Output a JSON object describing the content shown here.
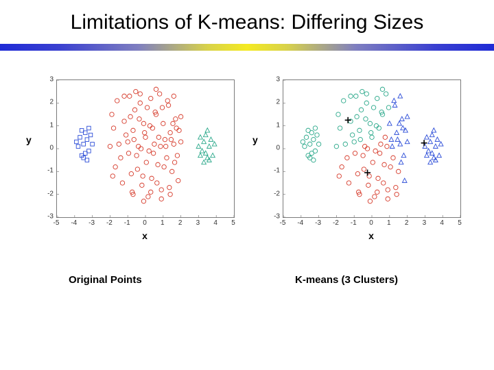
{
  "title": "Limitations of K-means: Differing Sizes",
  "title_fontsize": 30,
  "background_color": "#ffffff",
  "stripe": {
    "height": 10,
    "colors": [
      "#1f2bd6",
      "#3a40d0",
      "#7f7fc0",
      "#d8d24a",
      "#f4ea22",
      "#d8d24a",
      "#7f7fc0",
      "#3a40d0",
      "#1f2bd6"
    ],
    "stops": [
      0,
      0.12,
      0.28,
      0.42,
      0.5,
      0.58,
      0.72,
      0.88,
      1.0
    ]
  },
  "axes": {
    "xlim": [
      -5,
      5
    ],
    "ylim": [
      -3,
      3
    ],
    "xticks": [
      -5,
      -4,
      -3,
      -2,
      -1,
      0,
      1,
      2,
      3,
      4,
      5
    ],
    "yticks": [
      -3,
      -2,
      -1,
      0,
      1,
      2,
      3
    ],
    "xlabel": "x",
    "ylabel": "y",
    "tick_fontsize": 10,
    "label_fontsize": 14,
    "border_color": "#7a7a7a"
  },
  "marker": {
    "radius": 3.2,
    "stroke_width": 0.9,
    "fill": "none",
    "square_size": 5.5,
    "triangle_size": 6
  },
  "centroid": {
    "size": 9,
    "stroke_width": 1.6,
    "color": "#000000"
  },
  "clusters_common": {
    "small_left": {
      "color_truth": "#2a4bd7",
      "shape": "square",
      "points": [
        [
          -3.5,
          0.2
        ],
        [
          -3.4,
          0.7
        ],
        [
          -3.7,
          0.5
        ],
        [
          -3.2,
          -0.1
        ],
        [
          -3.6,
          -0.3
        ],
        [
          -3.3,
          0.4
        ],
        [
          -3.8,
          0.1
        ],
        [
          -3.1,
          0.6
        ],
        [
          -3.5,
          -0.4
        ],
        [
          -3.2,
          0.9
        ],
        [
          -3.9,
          0.3
        ],
        [
          -3.4,
          -0.2
        ],
        [
          -3.0,
          0.2
        ],
        [
          -3.6,
          0.8
        ],
        [
          -3.3,
          -0.5
        ]
      ]
    },
    "big_mid": {
      "color_truth": "#d63a2a",
      "shape": "circle",
      "points": [
        [
          -1.8,
          0.9
        ],
        [
          -1.6,
          2.1
        ],
        [
          -1.4,
          -0.4
        ],
        [
          -1.2,
          1.2
        ],
        [
          -1.0,
          0.3
        ],
        [
          -0.9,
          2.3
        ],
        [
          -0.8,
          -1.1
        ],
        [
          -0.7,
          0.8
        ],
        [
          -0.6,
          1.7
        ],
        [
          -0.5,
          -0.3
        ],
        [
          -0.4,
          0.1
        ],
        [
          -0.3,
          2.0
        ],
        [
          -0.2,
          -1.6
        ],
        [
          -0.1,
          1.1
        ],
        [
          0.0,
          0.5
        ],
        [
          0.05,
          -0.6
        ],
        [
          0.1,
          1.8
        ],
        [
          0.2,
          -0.1
        ],
        [
          0.3,
          2.2
        ],
        [
          0.35,
          -1.3
        ],
        [
          0.4,
          0.9
        ],
        [
          0.5,
          0.2
        ],
        [
          0.6,
          1.5
        ],
        [
          0.7,
          -0.7
        ],
        [
          0.8,
          2.4
        ],
        [
          0.85,
          0.1
        ],
        [
          0.9,
          -1.8
        ],
        [
          1.0,
          1.1
        ],
        [
          1.1,
          0.4
        ],
        [
          1.2,
          -0.4
        ],
        [
          1.3,
          1.9
        ],
        [
          1.4,
          0.7
        ],
        [
          1.5,
          -1.0
        ],
        [
          1.6,
          0.2
        ],
        [
          1.7,
          1.3
        ],
        [
          1.8,
          -0.3
        ],
        [
          1.9,
          0.8
        ],
        [
          -1.7,
          -0.8
        ],
        [
          -1.5,
          0.2
        ],
        [
          -1.3,
          -1.5
        ],
        [
          -1.1,
          0.6
        ],
        [
          -0.95,
          -0.2
        ],
        [
          -0.85,
          1.4
        ],
        [
          -0.75,
          -1.9
        ],
        [
          -0.65,
          0.4
        ],
        [
          -0.55,
          2.5
        ],
        [
          -0.45,
          -0.9
        ],
        [
          -0.35,
          1.3
        ],
        [
          -0.25,
          0.0
        ],
        [
          -0.15,
          -1.2
        ],
        [
          -0.05,
          0.7
        ],
        [
          0.15,
          -2.1
        ],
        [
          0.25,
          1.0
        ],
        [
          0.45,
          -0.2
        ],
        [
          0.55,
          1.6
        ],
        [
          0.65,
          -1.5
        ],
        [
          0.75,
          0.5
        ],
        [
          0.95,
          1.8
        ],
        [
          1.05,
          -0.8
        ],
        [
          1.15,
          0.1
        ],
        [
          1.25,
          2.1
        ],
        [
          1.35,
          -1.7
        ],
        [
          1.45,
          0.4
        ],
        [
          1.55,
          1.1
        ],
        [
          1.65,
          -0.6
        ],
        [
          1.75,
          0.9
        ],
        [
          1.85,
          -1.4
        ],
        [
          -1.9,
          1.5
        ],
        [
          -2.0,
          0.1
        ],
        [
          -1.85,
          -1.2
        ],
        [
          2.0,
          0.3
        ],
        [
          2.0,
          1.4
        ],
        [
          -0.1,
          -2.3
        ],
        [
          0.3,
          -1.9
        ],
        [
          0.9,
          -2.2
        ],
        [
          -0.7,
          -2.0
        ],
        [
          1.4,
          -2.0
        ],
        [
          -1.2,
          2.3
        ],
        [
          0.6,
          2.6
        ],
        [
          -0.3,
          2.4
        ],
        [
          1.6,
          2.3
        ]
      ]
    },
    "small_right": {
      "color_truth": "#2aa88a",
      "shape": "triangle",
      "points": [
        [
          3.3,
          0.3
        ],
        [
          3.4,
          -0.2
        ],
        [
          3.6,
          0.1
        ],
        [
          3.1,
          0.5
        ],
        [
          3.5,
          -0.4
        ],
        [
          3.7,
          0.4
        ],
        [
          3.2,
          -0.1
        ],
        [
          3.8,
          -0.3
        ],
        [
          3.0,
          0.1
        ],
        [
          3.4,
          0.6
        ],
        [
          3.6,
          -0.5
        ],
        [
          3.9,
          0.2
        ],
        [
          3.1,
          -0.3
        ],
        [
          3.5,
          0.8
        ],
        [
          3.3,
          -0.6
        ]
      ]
    }
  },
  "left_panel": {
    "caption": "Original Points",
    "assign_by": "truth"
  },
  "right_panel": {
    "caption": "K-means (3 Clusters)",
    "assign_by": "kmeans",
    "kmeans_colors": {
      "c0": "#2aa88a",
      "c1": "#d63a2a",
      "c2": "#2a4bd7"
    },
    "kmeans_shapes": {
      "c0": "circle",
      "c1": "circle",
      "c2": "triangle"
    },
    "centroids": [
      [
        -1.35,
        1.25
      ],
      [
        -0.25,
        -1.05
      ],
      [
        2.95,
        0.25
      ]
    ],
    "assign_rule": "nearest_centroid"
  }
}
